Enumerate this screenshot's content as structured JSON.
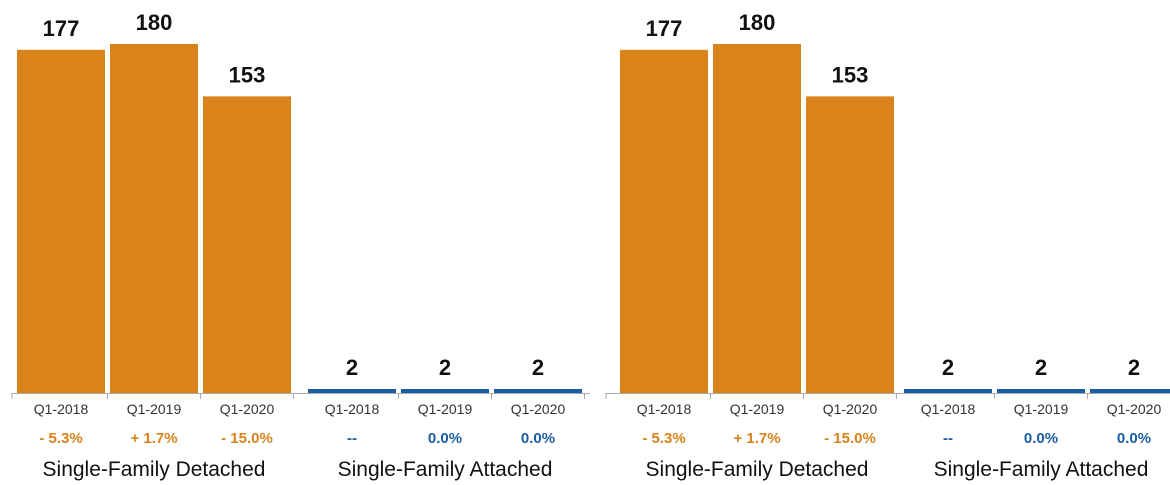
{
  "colors": {
    "detached": "#d9831a",
    "attached": "#1a5fa6",
    "axis": "#aaaaaa"
  },
  "chart_data": [
    {
      "type": "bar",
      "ylim": [
        0,
        180
      ],
      "groups": [
        {
          "label": "Single-Family Detached",
          "color_key": "detached",
          "categories": [
            "Q1-2018",
            "Q1-2019",
            "Q1-2020"
          ],
          "values": [
            177,
            180,
            153
          ],
          "value_labels": [
            "177",
            "180",
            "153"
          ],
          "changes": [
            "- 5.3%",
            "+ 1.7%",
            "- 15.0%"
          ]
        },
        {
          "label": "Single-Family Attached",
          "color_key": "attached",
          "categories": [
            "Q1-2018",
            "Q1-2019",
            "Q1-2020"
          ],
          "values": [
            2,
            2,
            2
          ],
          "value_labels": [
            "2",
            "2",
            "2"
          ],
          "changes": [
            "--",
            "0.0%",
            "0.0%"
          ]
        }
      ]
    },
    {
      "type": "bar",
      "ylim": [
        0,
        180
      ],
      "groups": [
        {
          "label": "Single-Family Detached",
          "color_key": "detached",
          "categories": [
            "Q1-2018",
            "Q1-2019",
            "Q1-2020"
          ],
          "values": [
            177,
            180,
            153
          ],
          "value_labels": [
            "177",
            "180",
            "153"
          ],
          "changes": [
            "- 5.3%",
            "+ 1.7%",
            "- 15.0%"
          ]
        },
        {
          "label": "Single-Family Attached",
          "color_key": "attached",
          "categories": [
            "Q1-2018",
            "Q1-2019",
            "Q1-2020"
          ],
          "values": [
            2,
            2,
            2
          ],
          "value_labels": [
            "2",
            "2",
            "2"
          ],
          "changes": [
            "--",
            "0.0%",
            "0.0%"
          ]
        }
      ]
    }
  ]
}
